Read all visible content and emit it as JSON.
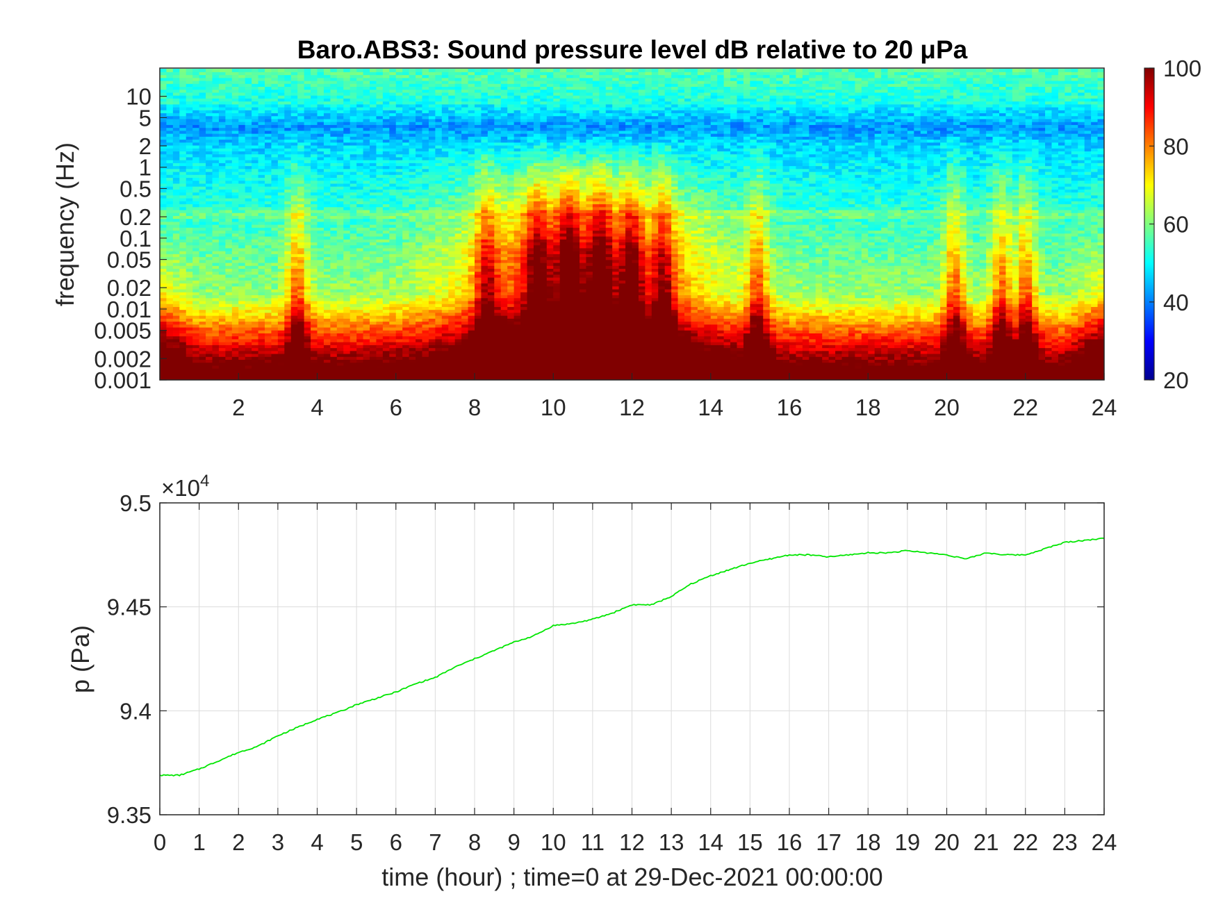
{
  "chart_data": [
    {
      "type": "heatmap",
      "title": "Baro.ABS3: Sound pressure level dB relative to 20 μPa",
      "ylabel": "frequency (Hz)",
      "xlabel": "",
      "x_range": [
        0,
        24
      ],
      "x_ticks": [
        "2",
        "4",
        "6",
        "8",
        "10",
        "12",
        "14",
        "16",
        "18",
        "20",
        "22",
        "24"
      ],
      "y_scale": "log",
      "y_range": [
        0.001,
        25
      ],
      "y_ticks": [
        "10",
        "5",
        "2",
        "1",
        "0.5",
        "0.2",
        "0.1",
        "0.05",
        "0.02",
        "0.01",
        "0.005",
        "0.002",
        "0.001"
      ],
      "colorbar": {
        "range": [
          20,
          100
        ],
        "ticks": [
          "100",
          "80",
          "60",
          "40",
          "20"
        ],
        "colormap": "jet"
      },
      "grid": false,
      "event_hours": [
        3.5,
        8.3,
        9.6,
        10.4,
        11.2,
        12.0,
        12.8,
        15.2,
        20.2,
        21.4,
        22.0
      ],
      "active_period_hours": [
        8,
        13.5
      ]
    },
    {
      "type": "line",
      "ylabel": "p (Pa)",
      "xlabel": "time (hour) ; time=0 at 29-Dec-2021 00:00:00",
      "xlim": [
        0,
        24
      ],
      "ylim": [
        93500,
        95000
      ],
      "y_exponent_label": "×10",
      "y_exponent_power": "4",
      "x_ticks": [
        "0",
        "1",
        "2",
        "3",
        "4",
        "5",
        "6",
        "7",
        "8",
        "9",
        "10",
        "11",
        "12",
        "13",
        "14",
        "15",
        "16",
        "17",
        "18",
        "19",
        "20",
        "21",
        "22",
        "23",
        "24"
      ],
      "y_ticks": [
        "9.5",
        "9.45",
        "9.4",
        "9.35"
      ],
      "grid": true,
      "line_color": "#00e600",
      "series": [
        {
          "x": [
            0,
            0.5,
            1,
            1.5,
            2,
            2.5,
            3,
            3.5,
            4,
            4.5,
            5,
            5.5,
            6,
            6.5,
            7,
            7.5,
            8,
            8.5,
            9,
            9.5,
            10,
            10.5,
            11,
            11.5,
            12,
            12.5,
            13,
            13.5,
            14,
            14.5,
            15,
            15.5,
            16,
            16.5,
            17,
            17.5,
            18,
            18.5,
            19,
            19.5,
            20,
            20.5,
            21,
            21.5,
            22,
            22.5,
            23,
            23.5,
            24
          ],
          "y": [
            93690,
            93690,
            93720,
            93760,
            93800,
            93830,
            93880,
            93920,
            93960,
            93990,
            94030,
            94060,
            94090,
            94130,
            94160,
            94210,
            94250,
            94290,
            94330,
            94360,
            94410,
            94420,
            94440,
            94470,
            94510,
            94510,
            94550,
            94610,
            94650,
            94680,
            94710,
            94730,
            94750,
            94750,
            94740,
            94750,
            94760,
            94760,
            94770,
            94760,
            94750,
            94730,
            94760,
            94750,
            94750,
            94780,
            94810,
            94820,
            94830
          ]
        }
      ]
    }
  ]
}
